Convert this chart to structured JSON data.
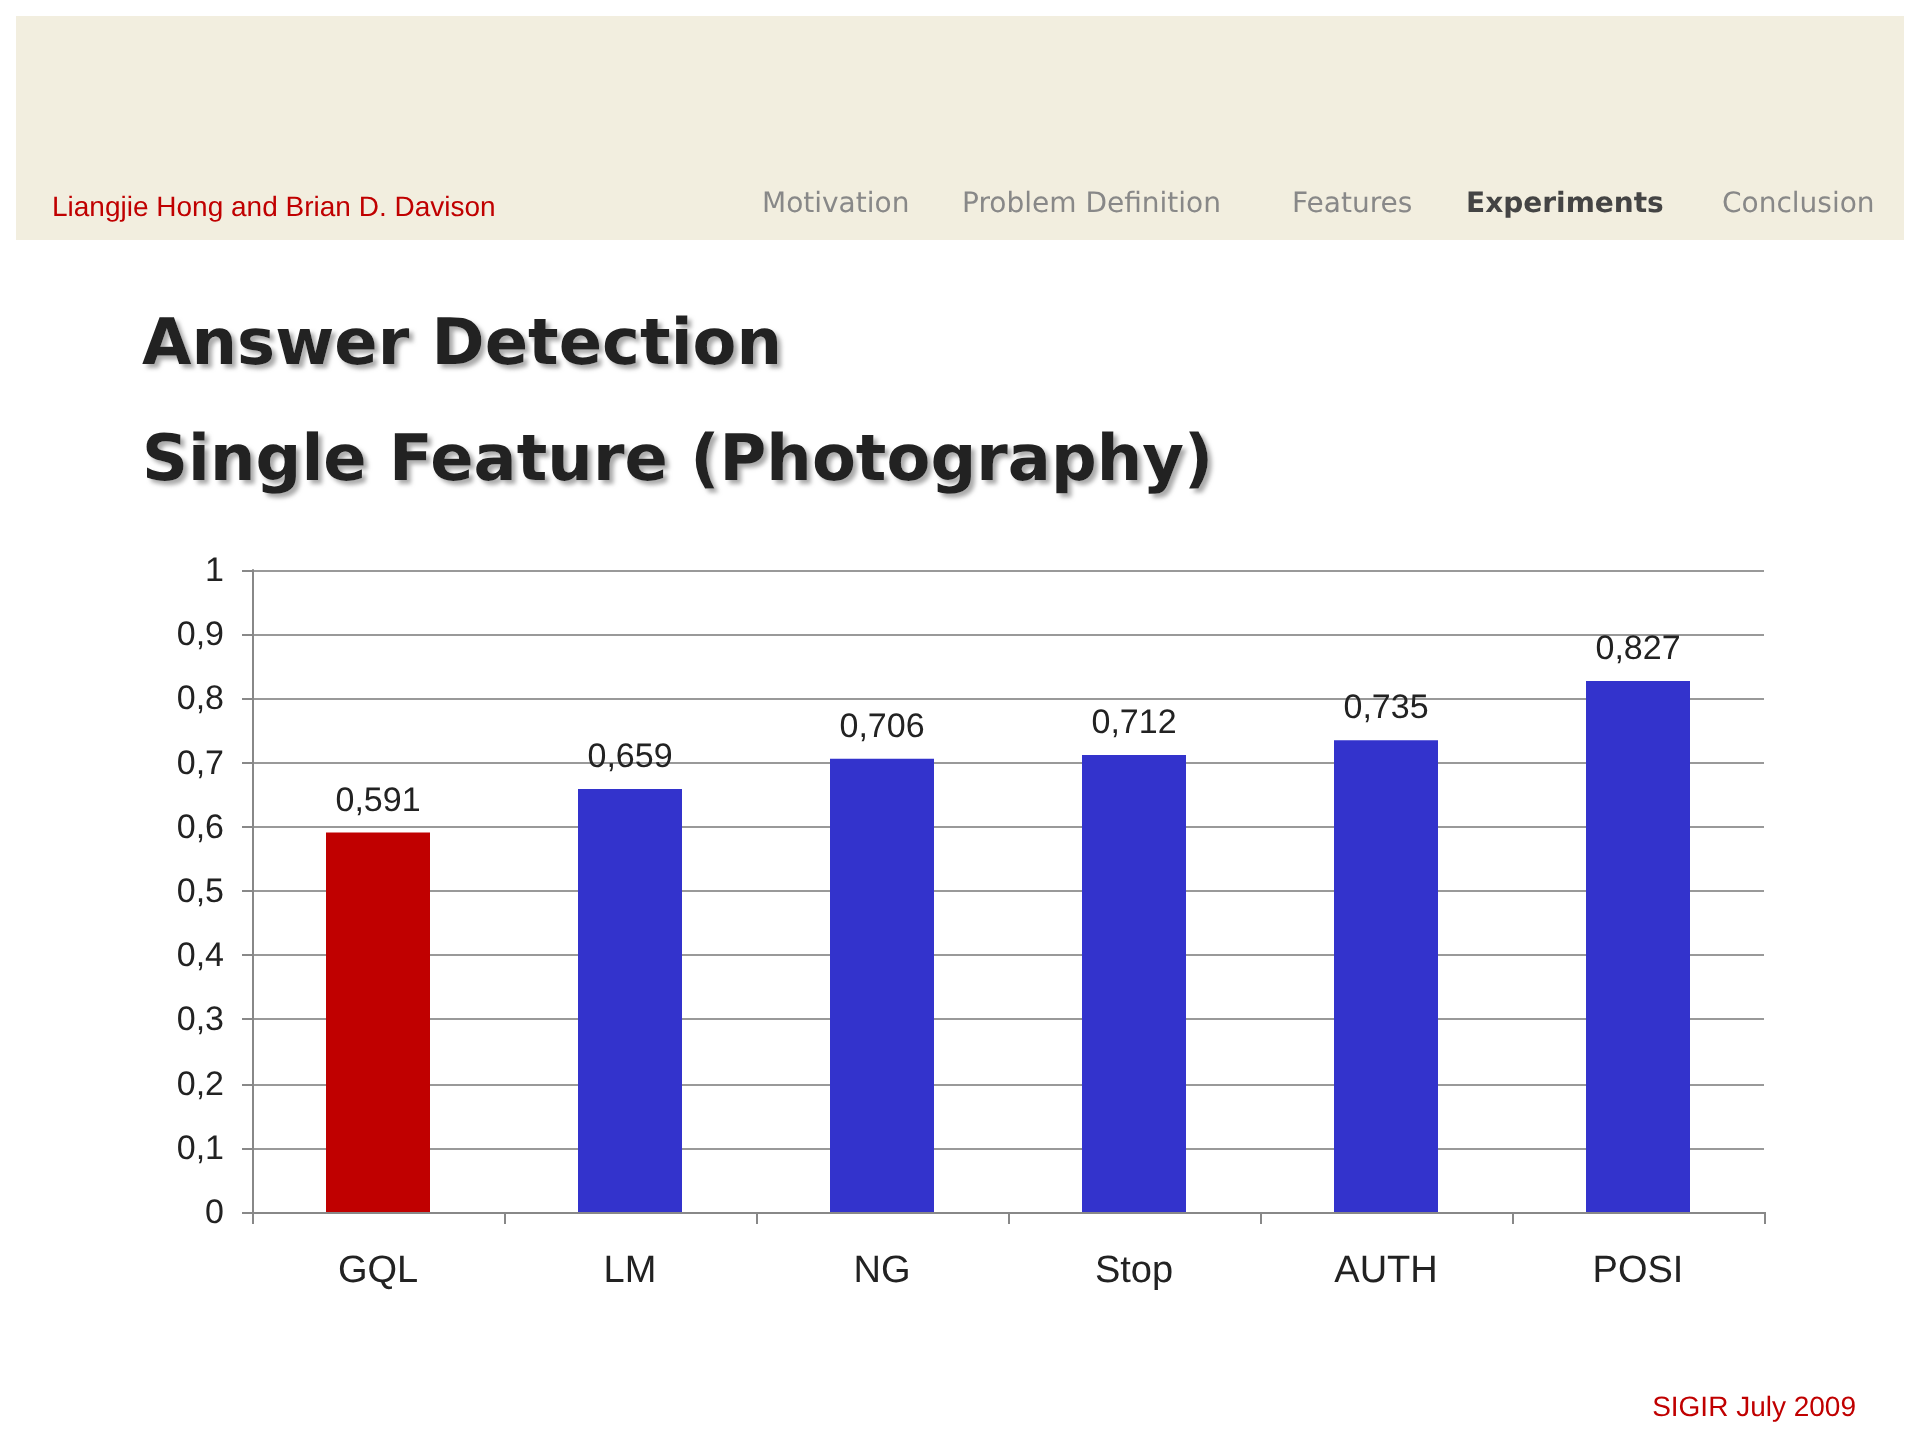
{
  "chart_data": {
    "type": "bar",
    "title": "Answer Detection",
    "subtitle": "Single Feature (Photography)",
    "annotations": [
      "Liangjie Hong and Brian D. Davison",
      "Motivation",
      "Problem Definition",
      "Features",
      "Experiments",
      "Conclusion",
      "SIGIR July 2009"
    ],
    "categories": [
      "GQL",
      "LM",
      "NG",
      "Stop",
      "AUTH",
      "POSI"
    ],
    "values": [
      0.591,
      0.659,
      0.706,
      0.712,
      0.735,
      0.827
    ],
    "colors": [
      "#c00000",
      "#3333cc",
      "#3333cc",
      "#3333cc",
      "#3333cc",
      "#3333cc"
    ],
    "value_labels": [
      "0,591",
      "0,659",
      "0,706",
      "0,712",
      "0,735",
      "0,827"
    ],
    "ylim": [
      0,
      1
    ],
    "yticks": [
      0,
      {
        "value": 0.1,
        "label": "0,1"
      },
      {
        "value": 0.2,
        "label": "0,2"
      },
      {
        "value": 0.3,
        "label": "0,3"
      },
      {
        "value": 0.4,
        "label": "0,4"
      },
      {
        "value": 0.5,
        "label": "0,5"
      },
      {
        "value": 0.6,
        "label": "0,6"
      },
      {
        "value": 0.7,
        "label": "0,7"
      },
      {
        "value": 0.8,
        "label": "0,8"
      },
      {
        "value": 0.9,
        "label": "0,9"
      },
      1
    ],
    "grid": "y"
  }
}
